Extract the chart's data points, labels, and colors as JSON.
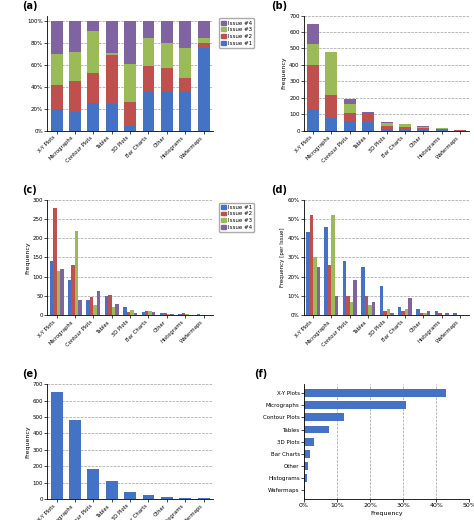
{
  "categories": [
    "X-Y Plots",
    "Micrographs",
    "Contour Plots",
    "Tables",
    "3D Plots",
    "Bar Charts",
    "Other",
    "Histograms",
    "Wafermaps"
  ],
  "panel_a": {
    "issue1": [
      0.2,
      0.17,
      0.25,
      0.24,
      0.04,
      0.35,
      0.35,
      0.35,
      0.75
    ],
    "issue2": [
      0.22,
      0.28,
      0.28,
      0.45,
      0.22,
      0.24,
      0.22,
      0.13,
      0.05
    ],
    "issue3": [
      0.28,
      0.27,
      0.38,
      0.02,
      0.35,
      0.26,
      0.23,
      0.27,
      0.05
    ],
    "issue4": [
      0.3,
      0.28,
      0.09,
      0.29,
      0.39,
      0.15,
      0.2,
      0.25,
      0.15
    ]
  },
  "panel_b": {
    "issue1": [
      130,
      80,
      60,
      55,
      12,
      3,
      3,
      2,
      1
    ],
    "issue2": [
      270,
      140,
      45,
      50,
      15,
      18,
      12,
      7,
      2
    ],
    "issue3": [
      125,
      260,
      55,
      5,
      20,
      18,
      8,
      5,
      1
    ],
    "issue4": [
      125,
      0,
      35,
      5,
      8,
      5,
      5,
      3,
      1
    ],
    "ymax": 700
  },
  "panel_c": {
    "issue1": [
      140,
      90,
      40,
      50,
      22,
      8,
      5,
      2,
      3
    ],
    "issue2": [
      280,
      130,
      48,
      53,
      8,
      10,
      4,
      5,
      0
    ],
    "issue3": [
      115,
      220,
      25,
      20,
      12,
      10,
      3,
      2,
      0
    ],
    "issue4": [
      120,
      40,
      62,
      28,
      5,
      8,
      3,
      1,
      0
    ],
    "ymax": 300
  },
  "panel_d": {
    "issue1": [
      43,
      46,
      28,
      25,
      15,
      4,
      3,
      2,
      1
    ],
    "issue2": [
      52,
      26,
      10,
      10,
      2,
      2,
      1,
      1,
      0
    ],
    "issue3": [
      30,
      52,
      7,
      5,
      3,
      3,
      1,
      0,
      0
    ],
    "issue4": [
      25,
      10,
      18,
      7,
      1,
      9,
      2,
      1,
      0
    ],
    "ymax": 60
  },
  "panel_e": {
    "values": [
      650,
      480,
      185,
      110,
      45,
      25,
      12,
      10,
      5
    ],
    "ymax": 700
  },
  "panel_f": {
    "labels": [
      "X-Y Plots",
      "Micrographs",
      "Contour Plots",
      "Tables",
      "3D Plots",
      "Bar Charts",
      "Other",
      "Histograms",
      "Wafermaps"
    ],
    "values": [
      0.43,
      0.31,
      0.12,
      0.075,
      0.03,
      0.02,
      0.012,
      0.01,
      0.003
    ],
    "xmax": 0.5,
    "xticks": [
      0.0,
      0.1,
      0.2,
      0.3,
      0.4,
      0.5
    ]
  },
  "colors": {
    "issue1": "#4472C4",
    "issue2": "#C0504D",
    "issue3": "#9BBB59",
    "issue4": "#8064A2",
    "bar_single": "#4472C4"
  }
}
